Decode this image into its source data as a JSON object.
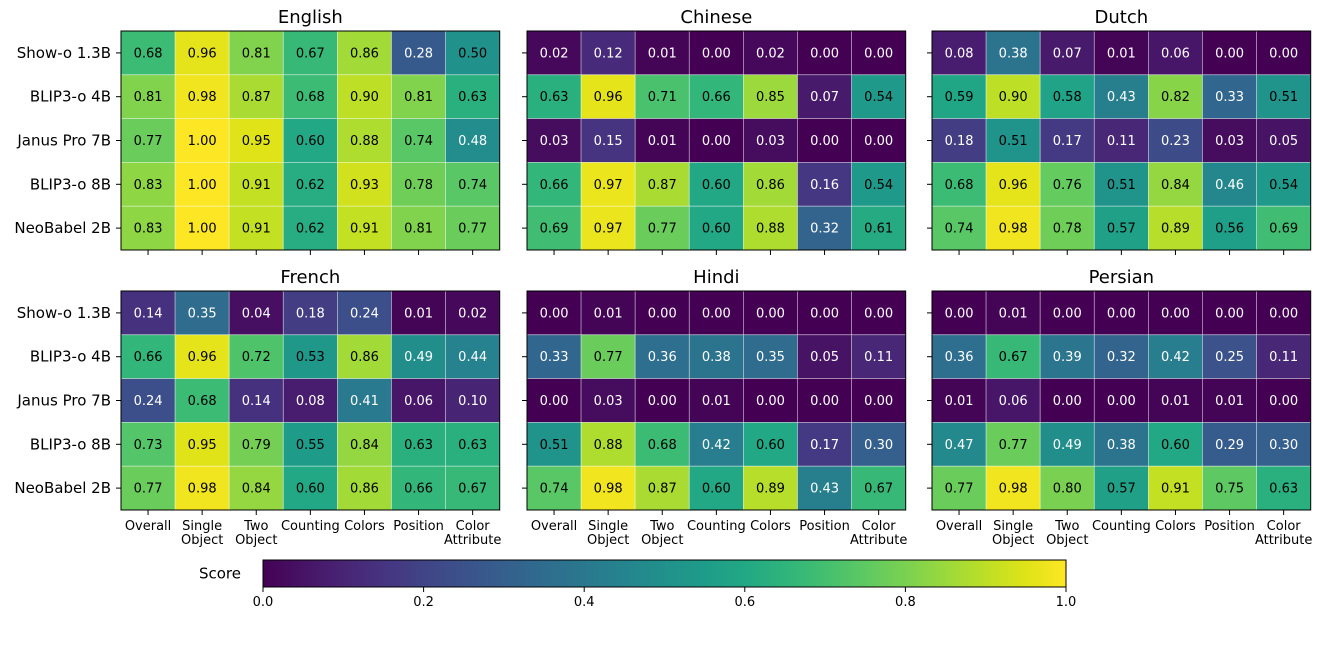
{
  "chart_data": {
    "type": "heatmap",
    "models": [
      "Show-o 1.3B",
      "BLIP3-o 4B",
      "Janus Pro 7B",
      "BLIP3-o 8B",
      "NeoBabel 2B"
    ],
    "categories": [
      [
        "Overall"
      ],
      [
        "Single",
        "Object"
      ],
      [
        "Two",
        "Object"
      ],
      [
        "Counting"
      ],
      [
        "Colors"
      ],
      [
        "Position"
      ],
      [
        "Color",
        "Attribute"
      ]
    ],
    "colorbar": {
      "label": "Score",
      "range": [
        0.0,
        1.0
      ],
      "ticks": [
        "0.0",
        "0.2",
        "0.4",
        "0.6",
        "0.8",
        "1.0"
      ]
    },
    "panels": [
      {
        "title": "English",
        "values": [
          [
            "0.68",
            "0.96",
            "0.81",
            "0.67",
            "0.86",
            "0.28",
            "0.50"
          ],
          [
            "0.81",
            "0.98",
            "0.87",
            "0.68",
            "0.90",
            "0.81",
            "0.63"
          ],
          [
            "0.77",
            "1.00",
            "0.95",
            "0.60",
            "0.88",
            "0.74",
            "0.48"
          ],
          [
            "0.83",
            "1.00",
            "0.91",
            "0.62",
            "0.93",
            "0.78",
            "0.74"
          ],
          [
            "0.83",
            "1.00",
            "0.91",
            "0.62",
            "0.91",
            "0.81",
            "0.77"
          ]
        ]
      },
      {
        "title": "Chinese",
        "values": [
          [
            "0.02",
            "0.12",
            "0.01",
            "0.00",
            "0.02",
            "0.00",
            "0.00"
          ],
          [
            "0.63",
            "0.96",
            "0.71",
            "0.66",
            "0.85",
            "0.07",
            "0.54"
          ],
          [
            "0.03",
            "0.15",
            "0.01",
            "0.00",
            "0.03",
            "0.00",
            "0.00"
          ],
          [
            "0.66",
            "0.97",
            "0.87",
            "0.60",
            "0.86",
            "0.16",
            "0.54"
          ],
          [
            "0.69",
            "0.97",
            "0.77",
            "0.60",
            "0.88",
            "0.32",
            "0.61"
          ]
        ]
      },
      {
        "title": "Dutch",
        "values": [
          [
            "0.08",
            "0.38",
            "0.07",
            "0.01",
            "0.06",
            "0.00",
            "0.00"
          ],
          [
            "0.59",
            "0.90",
            "0.58",
            "0.43",
            "0.82",
            "0.33",
            "0.51"
          ],
          [
            "0.18",
            "0.51",
            "0.17",
            "0.11",
            "0.23",
            "0.03",
            "0.05"
          ],
          [
            "0.68",
            "0.96",
            "0.76",
            "0.51",
            "0.84",
            "0.46",
            "0.54"
          ],
          [
            "0.74",
            "0.98",
            "0.78",
            "0.57",
            "0.89",
            "0.56",
            "0.69"
          ]
        ]
      },
      {
        "title": "French",
        "values": [
          [
            "0.14",
            "0.35",
            "0.04",
            "0.18",
            "0.24",
            "0.01",
            "0.02"
          ],
          [
            "0.66",
            "0.96",
            "0.72",
            "0.53",
            "0.86",
            "0.49",
            "0.44"
          ],
          [
            "0.24",
            "0.68",
            "0.14",
            "0.08",
            "0.41",
            "0.06",
            "0.10"
          ],
          [
            "0.73",
            "0.95",
            "0.79",
            "0.55",
            "0.84",
            "0.63",
            "0.63"
          ],
          [
            "0.77",
            "0.98",
            "0.84",
            "0.60",
            "0.86",
            "0.66",
            "0.67"
          ]
        ]
      },
      {
        "title": "Hindi",
        "values": [
          [
            "0.00",
            "0.01",
            "0.00",
            "0.00",
            "0.00",
            "0.00",
            "0.00"
          ],
          [
            "0.33",
            "0.77",
            "0.36",
            "0.38",
            "0.35",
            "0.05",
            "0.11"
          ],
          [
            "0.00",
            "0.03",
            "0.00",
            "0.01",
            "0.00",
            "0.00",
            "0.00"
          ],
          [
            "0.51",
            "0.88",
            "0.68",
            "0.42",
            "0.60",
            "0.17",
            "0.30"
          ],
          [
            "0.74",
            "0.98",
            "0.87",
            "0.60",
            "0.89",
            "0.43",
            "0.67"
          ]
        ]
      },
      {
        "title": "Persian",
        "values": [
          [
            "0.00",
            "0.01",
            "0.00",
            "0.00",
            "0.00",
            "0.00",
            "0.00"
          ],
          [
            "0.36",
            "0.67",
            "0.39",
            "0.32",
            "0.42",
            "0.25",
            "0.11"
          ],
          [
            "0.01",
            "0.06",
            "0.00",
            "0.00",
            "0.01",
            "0.01",
            "0.00"
          ],
          [
            "0.47",
            "0.77",
            "0.49",
            "0.38",
            "0.60",
            "0.29",
            "0.30"
          ],
          [
            "0.77",
            "0.98",
            "0.80",
            "0.57",
            "0.91",
            "0.75",
            "0.63"
          ]
        ]
      }
    ]
  }
}
